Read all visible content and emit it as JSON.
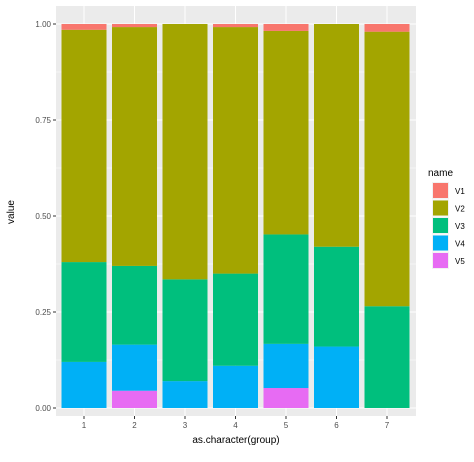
{
  "chart_data": {
    "type": "bar",
    "stacked": true,
    "categories": [
      "1",
      "2",
      "3",
      "4",
      "5",
      "6",
      "7"
    ],
    "series": [
      {
        "name": "V1",
        "color": "#F8766D",
        "values": [
          0.015,
          0.008,
          0.0,
          0.008,
          0.018,
          0.0,
          0.02
        ]
      },
      {
        "name": "V2",
        "color": "#A3A500",
        "values": [
          0.605,
          0.622,
          0.665,
          0.642,
          0.53,
          0.58,
          0.715
        ]
      },
      {
        "name": "V3",
        "color": "#00BF7D",
        "values": [
          0.26,
          0.205,
          0.265,
          0.24,
          0.285,
          0.26,
          0.265
        ]
      },
      {
        "name": "V4",
        "color": "#00B0F6",
        "values": [
          0.12,
          0.12,
          0.07,
          0.11,
          0.115,
          0.16,
          0.0
        ]
      },
      {
        "name": "V5",
        "color": "#E76BF3",
        "values": [
          0.0,
          0.045,
          0.0,
          0.0,
          0.052,
          0.0,
          0.0
        ]
      }
    ],
    "xlabel": "as.character(group)",
    "ylabel": "value",
    "ylim": [
      0,
      1
    ],
    "yticks": [
      "0.00",
      "0.25",
      "0.50",
      "0.75",
      "1.00"
    ],
    "legend": {
      "title": "name",
      "position": "right"
    },
    "grid": true,
    "panel_background": "#EBEBEB"
  }
}
